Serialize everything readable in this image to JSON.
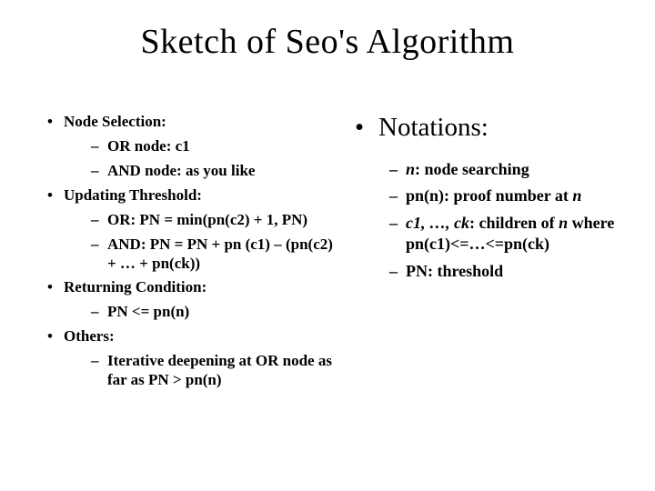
{
  "title": "Sketch of Seo's Algorithm",
  "left": {
    "items": [
      {
        "label": "Node Selection:",
        "sub": [
          "OR node:  c1",
          "AND node: as you like"
        ]
      },
      {
        "label": "Updating Threshold:",
        "sub": [
          "OR: PN = min(pn(c2) + 1, PN)",
          "AND: PN =  PN + pn (c1) – (pn(c2) + … + pn(ck))"
        ]
      },
      {
        "label": "Returning Condition:",
        "sub": [
          "PN <= pn(n)"
        ]
      },
      {
        "label": "Others:",
        "sub": [
          "Iterative deepening at OR node as far as PN > pn(n)"
        ]
      }
    ]
  },
  "right": {
    "heading": "Notations:",
    "items": [
      {
        "parts": [
          {
            "t": " ",
            "i": false
          },
          {
            "t": "n",
            "i": true
          },
          {
            "t": ": node searching",
            "i": false
          }
        ]
      },
      {
        "parts": [
          {
            "t": "pn(n): proof number at ",
            "i": false
          },
          {
            "t": "n",
            "i": true
          }
        ]
      },
      {
        "parts": [
          {
            "t": "c1, …, ck",
            "i": true
          },
          {
            "t": ": children of ",
            "i": false
          },
          {
            "t": "n",
            "i": true
          },
          {
            "t": " where pn(c1)<=…<=pn(ck)",
            "i": false
          }
        ]
      },
      {
        "parts": [
          {
            "t": "PN: threshold",
            "i": false
          }
        ]
      }
    ]
  },
  "style": {
    "background_color": "#ffffff",
    "text_color": "#000000",
    "font_family": "Times New Roman",
    "title_fontsize": 38,
    "left_fontsize": 17,
    "right_heading_fontsize": 29,
    "right_item_fontsize": 18,
    "bullet_char": "•",
    "dash_char": "–"
  }
}
